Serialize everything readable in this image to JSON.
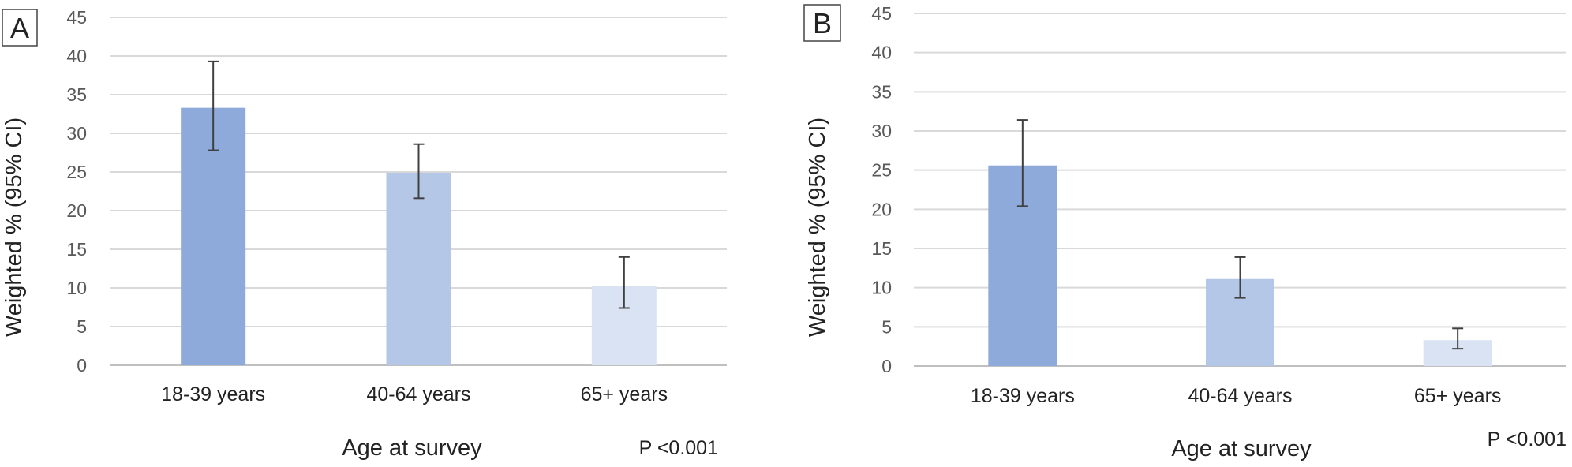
{
  "chart_data": [
    {
      "type": "bar",
      "panel": "A",
      "categories": [
        "18-39 years",
        "40-64 years",
        "65+ years"
      ],
      "values": [
        33.3,
        24.9,
        10.3
      ],
      "ci_low": [
        27.8,
        21.6,
        7.4
      ],
      "ci_high": [
        39.3,
        28.6,
        14.0
      ],
      "colors": [
        "#8eaadb",
        "#b4c7e7",
        "#dae3f3"
      ],
      "xlabel": "Age at survey",
      "ylabel": "Weighted % (95% CI)",
      "ylim": [
        0,
        45
      ],
      "yticks": [
        0,
        5,
        10,
        15,
        20,
        25,
        30,
        35,
        40,
        45
      ],
      "grid": true,
      "annotation": "P <0.001"
    },
    {
      "type": "bar",
      "panel": "B",
      "categories": [
        "18-39 years",
        "40-64 years",
        "65+ years"
      ],
      "values": [
        25.6,
        11.1,
        3.3
      ],
      "ci_low": [
        20.4,
        8.7,
        2.2
      ],
      "ci_high": [
        31.4,
        13.9,
        4.8
      ],
      "colors": [
        "#8eaadb",
        "#b4c7e7",
        "#dae3f3"
      ],
      "xlabel": "Age at survey",
      "ylabel": "Weighted % (95% CI)",
      "ylim": [
        0,
        45
      ],
      "yticks": [
        0,
        5,
        10,
        15,
        20,
        25,
        30,
        35,
        40,
        45
      ],
      "grid": true,
      "annotation": "P <0.001"
    }
  ]
}
